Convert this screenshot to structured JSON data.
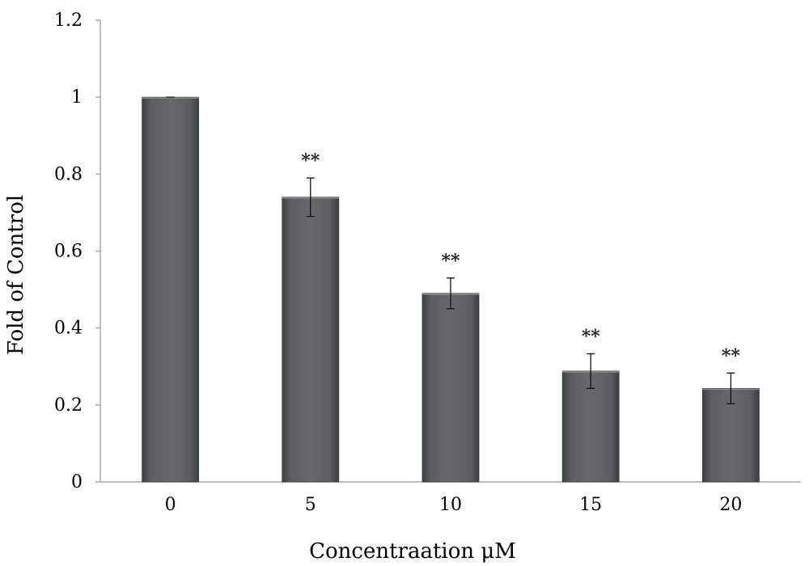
{
  "chart_data": {
    "type": "bar",
    "xlabel": "Concentraation μM",
    "ylabel": "Fold of Control",
    "categories": [
      "0",
      "5",
      "10",
      "15",
      "20"
    ],
    "values": [
      1.0,
      0.74,
      0.49,
      0.288,
      0.243
    ],
    "errors": [
      0.0,
      0.05,
      0.04,
      0.045,
      0.04
    ],
    "annotations": [
      "",
      "**",
      "**",
      "**",
      "**"
    ],
    "ylim": [
      0,
      1.2
    ],
    "yticks": [
      "0",
      "0.2",
      "0.4",
      "0.6",
      "0.8",
      "1",
      "1.2"
    ],
    "grid": false,
    "legend": "none",
    "bar_color": "#5c6060"
  }
}
